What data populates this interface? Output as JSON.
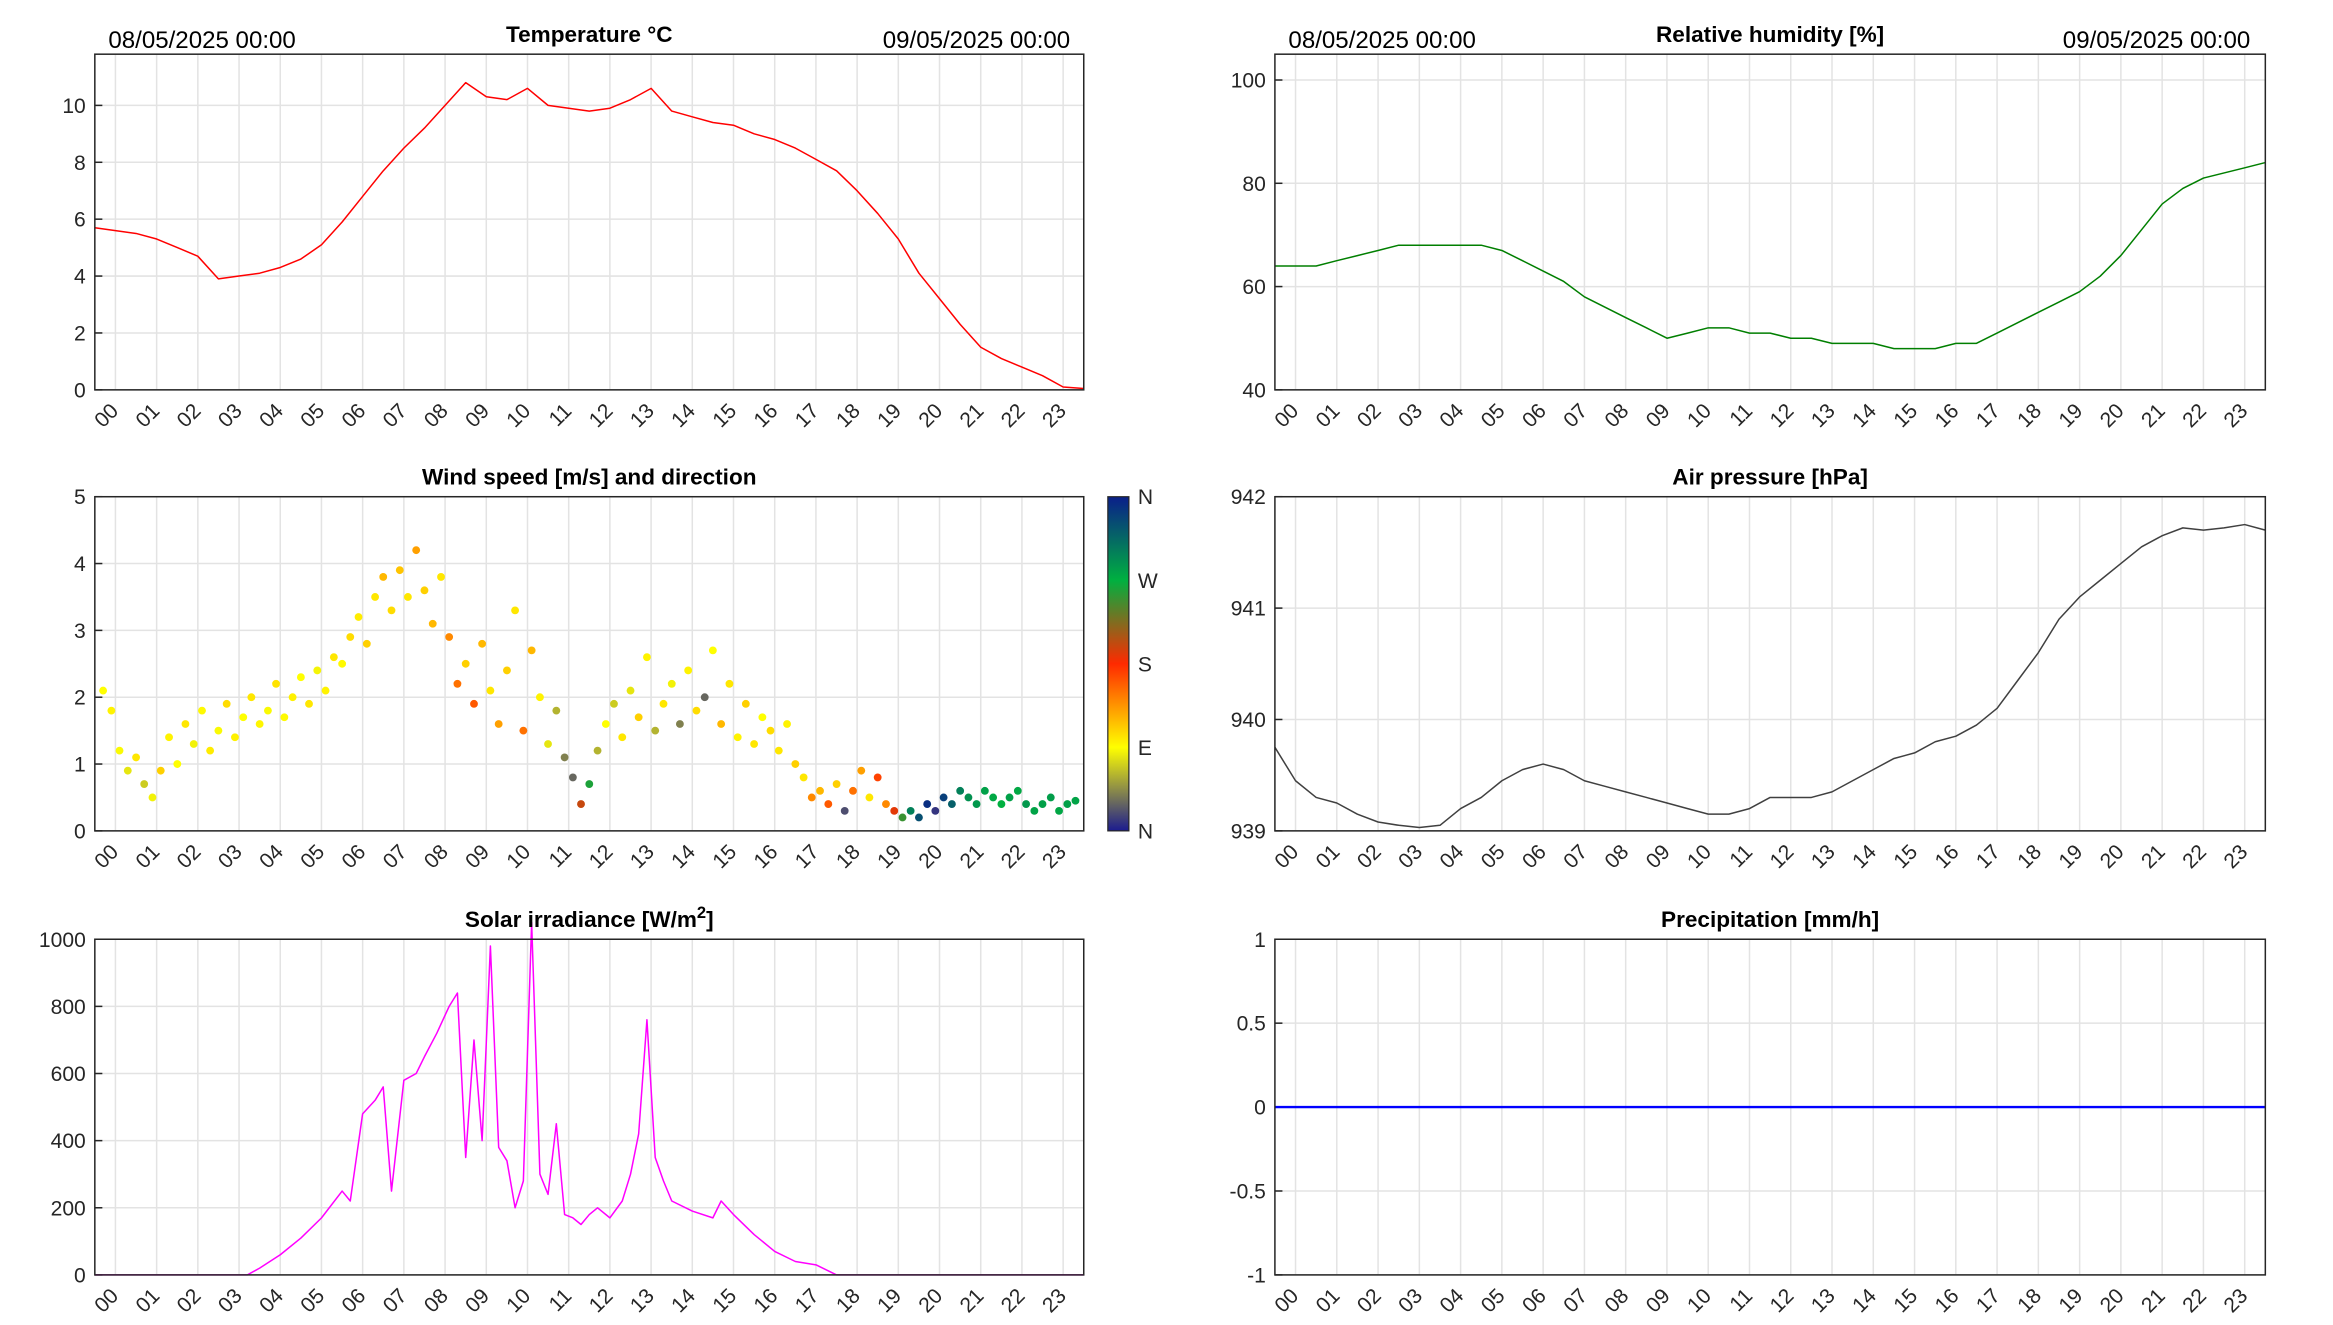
{
  "header": {
    "left_date": "08/05/2025 00:00",
    "right_date": "09/05/2025 00:00"
  },
  "hours": [
    "00",
    "01",
    "02",
    "03",
    "04",
    "05",
    "06",
    "07",
    "08",
    "09",
    "10",
    "11",
    "12",
    "13",
    "14",
    "15",
    "16",
    "17",
    "18",
    "19",
    "20",
    "21",
    "22",
    "23"
  ],
  "chart_data": [
    {
      "id": "temperature",
      "type": "line",
      "title": "Temperature °C",
      "color": "#ff0000",
      "xlim": [
        0,
        24
      ],
      "ylim": [
        0,
        11.8
      ],
      "yticks": [
        0,
        2,
        4,
        6,
        8,
        10
      ],
      "ytick_labels": [
        "0",
        "2",
        "4",
        "6",
        "8",
        "10"
      ],
      "grid": true,
      "x": [
        0,
        0.5,
        1,
        1.5,
        2,
        2.5,
        3,
        3.5,
        4,
        4.5,
        5,
        5.5,
        6,
        6.5,
        7,
        7.5,
        8,
        8.5,
        9,
        9.5,
        10,
        10.5,
        11,
        11.5,
        12,
        12.5,
        13,
        13.5,
        14,
        14.5,
        15,
        15.5,
        16,
        16.5,
        17,
        17.5,
        18,
        18.5,
        19,
        19.5,
        20,
        20.5,
        21,
        21.5,
        22,
        22.5,
        23,
        23.5,
        24
      ],
      "y": [
        5.7,
        5.6,
        5.5,
        5.3,
        5.0,
        4.7,
        3.9,
        4.0,
        4.1,
        4.3,
        4.6,
        5.1,
        5.9,
        6.8,
        7.7,
        8.5,
        9.2,
        10.0,
        10.8,
        10.3,
        10.2,
        10.6,
        10.0,
        9.9,
        9.8,
        9.9,
        10.2,
        10.6,
        9.8,
        9.6,
        9.4,
        9.3,
        9.0,
        8.8,
        8.5,
        8.1,
        7.7,
        7.0,
        6.2,
        5.3,
        4.1,
        3.2,
        2.3,
        1.5,
        1.1,
        0.8,
        0.5,
        0.1,
        0.05
      ]
    },
    {
      "id": "humidity",
      "type": "line",
      "title": "Relative humidity [%]",
      "color": "#007f00",
      "xlim": [
        0,
        24
      ],
      "ylim": [
        40,
        105
      ],
      "yticks": [
        40,
        60,
        80,
        100
      ],
      "ytick_labels": [
        "40",
        "60",
        "80",
        "100"
      ],
      "grid": true,
      "x": [
        0,
        0.5,
        1,
        1.5,
        2,
        2.5,
        3,
        3.5,
        4,
        4.5,
        5,
        5.5,
        6,
        6.5,
        7,
        7.5,
        8,
        8.5,
        9,
        9.5,
        10,
        10.5,
        11,
        11.5,
        12,
        12.5,
        13,
        13.5,
        14,
        14.5,
        15,
        15.5,
        16,
        16.5,
        17,
        17.5,
        18,
        18.5,
        19,
        19.5,
        20,
        20.5,
        21,
        21.5,
        22,
        22.5,
        23,
        23.5,
        24
      ],
      "y": [
        64,
        64,
        64,
        65,
        66,
        67,
        68,
        68,
        68,
        68,
        68,
        67,
        65,
        63,
        61,
        58,
        56,
        54,
        52,
        50,
        51,
        52,
        52,
        51,
        51,
        50,
        50,
        49,
        49,
        49,
        48,
        48,
        48,
        49,
        49,
        51,
        53,
        55,
        57,
        59,
        62,
        66,
        71,
        76,
        79,
        81,
        82,
        83,
        84
      ]
    },
    {
      "id": "wind",
      "type": "scatter",
      "title": "Wind speed [m/s] and direction",
      "xlim": [
        0,
        24
      ],
      "ylim": [
        0,
        5
      ],
      "yticks": [
        0,
        1,
        2,
        3,
        4,
        5
      ],
      "ytick_labels": [
        "0",
        "1",
        "2",
        "3",
        "4",
        "5"
      ],
      "grid": true,
      "colorbar": {
        "labels": [
          "N",
          "E",
          "S",
          "W",
          "N"
        ],
        "stops": [
          "#1b1b8f",
          "#ffff00",
          "#ff2a00",
          "#00b040",
          "#0a1f8a"
        ]
      },
      "points": [
        [
          0.2,
          2.1,
          90
        ],
        [
          0.4,
          1.8,
          95
        ],
        [
          0.6,
          1.2,
          88
        ],
        [
          0.8,
          0.9,
          80
        ],
        [
          1.0,
          1.1,
          100
        ],
        [
          1.2,
          0.7,
          70
        ],
        [
          1.4,
          0.5,
          85
        ],
        [
          1.6,
          0.9,
          110
        ],
        [
          1.8,
          1.4,
          95
        ],
        [
          2.0,
          1.0,
          90
        ],
        [
          2.2,
          1.6,
          100
        ],
        [
          2.4,
          1.3,
          85
        ],
        [
          2.6,
          1.8,
          92
        ],
        [
          2.8,
          1.2,
          98
        ],
        [
          3.0,
          1.5,
          88
        ],
        [
          3.2,
          1.9,
          105
        ],
        [
          3.4,
          1.4,
          96
        ],
        [
          3.6,
          1.7,
          90
        ],
        [
          3.8,
          2.0,
          100
        ],
        [
          4.0,
          1.6,
          94
        ],
        [
          4.2,
          1.8,
          88
        ],
        [
          4.4,
          2.2,
          102
        ],
        [
          4.6,
          1.7,
          92
        ],
        [
          4.8,
          2.0,
          96
        ],
        [
          5.0,
          2.3,
          90
        ],
        [
          5.2,
          1.9,
          100
        ],
        [
          5.4,
          2.4,
          86
        ],
        [
          5.6,
          2.1,
          95
        ],
        [
          5.8,
          2.6,
          100
        ],
        [
          6.0,
          2.5,
          92
        ],
        [
          6.2,
          2.9,
          105
        ],
        [
          6.4,
          3.2,
          98
        ],
        [
          6.6,
          2.8,
          110
        ],
        [
          6.8,
          3.5,
          100
        ],
        [
          7.0,
          3.8,
          120
        ],
        [
          7.2,
          3.3,
          105
        ],
        [
          7.4,
          3.9,
          115
        ],
        [
          7.6,
          3.5,
          100
        ],
        [
          7.8,
          4.2,
          130
        ],
        [
          8.0,
          3.6,
          110
        ],
        [
          8.2,
          3.1,
          120
        ],
        [
          8.4,
          3.8,
          100
        ],
        [
          8.6,
          2.9,
          140
        ],
        [
          8.8,
          2.2,
          150
        ],
        [
          9.0,
          2.5,
          110
        ],
        [
          9.2,
          1.9,
          160
        ],
        [
          9.4,
          2.8,
          120
        ],
        [
          9.6,
          2.1,
          100
        ],
        [
          9.8,
          1.6,
          130
        ],
        [
          10.0,
          2.4,
          110
        ],
        [
          10.2,
          3.3,
          100
        ],
        [
          10.4,
          1.5,
          150
        ],
        [
          10.6,
          2.7,
          120
        ],
        [
          10.8,
          2.0,
          95
        ],
        [
          11.0,
          1.3,
          80
        ],
        [
          11.2,
          1.8,
          60
        ],
        [
          11.4,
          1.1,
          40
        ],
        [
          11.6,
          0.8,
          30
        ],
        [
          11.8,
          0.4,
          200
        ],
        [
          12.0,
          0.7,
          260
        ],
        [
          12.2,
          1.2,
          60
        ],
        [
          12.4,
          1.6,
          90
        ],
        [
          12.6,
          1.9,
          70
        ],
        [
          12.8,
          1.4,
          100
        ],
        [
          13.0,
          2.1,
          80
        ],
        [
          13.2,
          1.7,
          110
        ],
        [
          13.4,
          2.6,
          95
        ],
        [
          13.6,
          1.5,
          60
        ],
        [
          13.8,
          1.9,
          100
        ],
        [
          14.0,
          2.2,
          85
        ],
        [
          14.2,
          1.6,
          40
        ],
        [
          14.4,
          2.4,
          95
        ],
        [
          14.6,
          1.8,
          105
        ],
        [
          14.8,
          2.0,
          30
        ],
        [
          15.0,
          2.7,
          90
        ],
        [
          15.2,
          1.6,
          120
        ],
        [
          15.4,
          2.2,
          100
        ],
        [
          15.6,
          1.4,
          95
        ],
        [
          15.8,
          1.9,
          110
        ],
        [
          16.0,
          1.3,
          100
        ],
        [
          16.2,
          1.7,
          90
        ],
        [
          16.4,
          1.5,
          105
        ],
        [
          16.6,
          1.2,
          100
        ],
        [
          16.8,
          1.6,
          95
        ],
        [
          17.0,
          1.0,
          110
        ],
        [
          17.2,
          0.8,
          100
        ],
        [
          17.4,
          0.5,
          140
        ],
        [
          17.6,
          0.6,
          120
        ],
        [
          17.8,
          0.4,
          160
        ],
        [
          18.0,
          0.7,
          110
        ],
        [
          18.2,
          0.3,
          20
        ],
        [
          18.4,
          0.6,
          150
        ],
        [
          18.6,
          0.9,
          130
        ],
        [
          18.8,
          0.5,
          100
        ],
        [
          19.0,
          0.8,
          170
        ],
        [
          19.2,
          0.4,
          140
        ],
        [
          19.4,
          0.3,
          190
        ],
        [
          19.6,
          0.2,
          250
        ],
        [
          19.8,
          0.3,
          300
        ],
        [
          20.0,
          0.2,
          330
        ],
        [
          20.2,
          0.4,
          350
        ],
        [
          20.4,
          0.3,
          10
        ],
        [
          20.6,
          0.5,
          340
        ],
        [
          20.8,
          0.4,
          320
        ],
        [
          21.0,
          0.6,
          300
        ],
        [
          21.2,
          0.5,
          290
        ],
        [
          21.4,
          0.4,
          285
        ],
        [
          21.6,
          0.6,
          280
        ],
        [
          21.8,
          0.5,
          275
        ],
        [
          22.0,
          0.4,
          270
        ],
        [
          22.2,
          0.5,
          280
        ],
        [
          22.4,
          0.6,
          275
        ],
        [
          22.6,
          0.4,
          285
        ],
        [
          22.8,
          0.3,
          278
        ],
        [
          23.0,
          0.4,
          280
        ],
        [
          23.2,
          0.5,
          282
        ],
        [
          23.4,
          0.3,
          276
        ],
        [
          23.6,
          0.4,
          280
        ],
        [
          23.8,
          0.45,
          278
        ]
      ]
    },
    {
      "id": "pressure",
      "type": "line",
      "title": "Air pressure [hPa]",
      "color": "#404040",
      "xlim": [
        0,
        24
      ],
      "ylim": [
        939,
        942
      ],
      "yticks": [
        939,
        940,
        941,
        942
      ],
      "ytick_labels": [
        "939",
        "940",
        "941",
        "942"
      ],
      "grid": true,
      "x": [
        0,
        0.5,
        1,
        1.5,
        2,
        2.5,
        3,
        3.5,
        4,
        4.5,
        5,
        5.5,
        6,
        6.5,
        7,
        7.5,
        8,
        8.5,
        9,
        9.5,
        10,
        10.5,
        11,
        11.5,
        12,
        12.5,
        13,
        13.5,
        14,
        14.5,
        15,
        15.5,
        16,
        16.5,
        17,
        17.5,
        18,
        18.5,
        19,
        19.5,
        20,
        20.5,
        21,
        21.5,
        22,
        22.5,
        23,
        23.5,
        24
      ],
      "y": [
        939.75,
        939.45,
        939.3,
        939.25,
        939.15,
        939.08,
        939.05,
        939.03,
        939.05,
        939.2,
        939.3,
        939.45,
        939.55,
        939.6,
        939.55,
        939.45,
        939.4,
        939.35,
        939.3,
        939.25,
        939.2,
        939.15,
        939.15,
        939.2,
        939.3,
        939.3,
        939.3,
        939.35,
        939.45,
        939.55,
        939.65,
        939.7,
        939.8,
        939.85,
        939.95,
        940.1,
        940.35,
        940.6,
        940.9,
        941.1,
        941.25,
        941.4,
        941.55,
        941.65,
        941.72,
        941.7,
        941.72,
        941.75,
        941.7
      ]
    },
    {
      "id": "solar",
      "type": "line",
      "title": "Solar irradiance [W/m",
      "title_sup": "2",
      "title_end": "]",
      "color": "#ff00ff",
      "xlim": [
        0,
        24
      ],
      "ylim": [
        0,
        1000
      ],
      "yticks": [
        0,
        200,
        400,
        600,
        800,
        1000
      ],
      "ytick_labels": [
        "0",
        "200",
        "400",
        "600",
        "800",
        "1000"
      ],
      "grid": true,
      "x": [
        0,
        1,
        2,
        3,
        3.7,
        4,
        4.5,
        5,
        5.5,
        6,
        6.2,
        6.5,
        6.8,
        7,
        7.2,
        7.5,
        7.8,
        8,
        8.3,
        8.6,
        8.8,
        9,
        9.2,
        9.4,
        9.6,
        9.8,
        10,
        10.2,
        10.4,
        10.6,
        10.8,
        11,
        11.2,
        11.4,
        11.6,
        11.8,
        12,
        12.2,
        12.5,
        12.8,
        13,
        13.2,
        13.4,
        13.6,
        13.8,
        14,
        14.5,
        15,
        15.2,
        15.5,
        16,
        16.5,
        17,
        17.5,
        18,
        19,
        20,
        21,
        22,
        23,
        24
      ],
      "y": [
        0,
        0,
        0,
        0,
        0,
        20,
        60,
        110,
        170,
        250,
        220,
        480,
        520,
        560,
        250,
        580,
        600,
        650,
        720,
        800,
        840,
        350,
        700,
        400,
        980,
        380,
        340,
        200,
        280,
        1050,
        300,
        240,
        450,
        180,
        170,
        150,
        180,
        200,
        170,
        220,
        300,
        420,
        760,
        350,
        280,
        220,
        190,
        170,
        220,
        180,
        120,
        70,
        40,
        30,
        0,
        0,
        0,
        0,
        0,
        0,
        0
      ]
    },
    {
      "id": "precip",
      "type": "line",
      "title": "Precipitation [mm/h]",
      "color": "#0000ff",
      "xlim": [
        0,
        24
      ],
      "ylim": [
        -1,
        1
      ],
      "yticks": [
        -1,
        -0.5,
        0,
        0.5,
        1
      ],
      "ytick_labels": [
        "-1",
        "-0.5",
        "0",
        "0.5",
        "1"
      ],
      "grid": true,
      "x": [
        0,
        24
      ],
      "y": [
        0,
        0
      ]
    }
  ]
}
